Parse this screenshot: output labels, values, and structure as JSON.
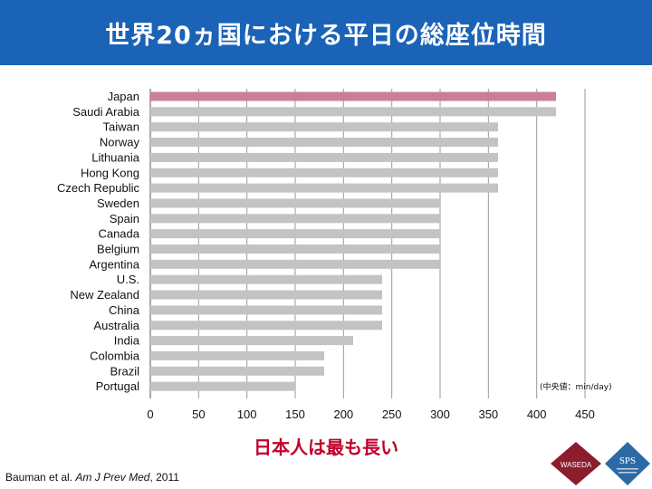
{
  "header": {
    "title": "世界20ヵ国における平日の総座位時間"
  },
  "chart_data": {
    "type": "bar",
    "orientation": "horizontal",
    "categories": [
      "Japan",
      "Saudi Arabia",
      "Taiwan",
      "Norway",
      "Lithuania",
      "Hong Kong",
      "Czech Republic",
      "Sweden",
      "Spain",
      "Canada",
      "Belgium",
      "Argentina",
      "U.S.",
      "New Zealand",
      "China",
      "Australia",
      "India",
      "Colombia",
      "Brazil",
      "Portugal"
    ],
    "values": [
      420,
      420,
      360,
      360,
      360,
      360,
      360,
      300,
      300,
      300,
      300,
      300,
      240,
      240,
      240,
      240,
      210,
      180,
      180,
      150
    ],
    "highlight_category": "Japan",
    "colors": {
      "highlight": "#c98097",
      "default": "#c3c3c3",
      "grid": "#9a9a9a"
    },
    "xlim": [
      0,
      450
    ],
    "xticks": [
      0,
      50,
      100,
      150,
      200,
      250,
      300,
      350,
      400,
      450
    ],
    "grid": "vertical",
    "unit_note": "(中央値：min/day)"
  },
  "conclusion": "日本人は最も長い",
  "citation": {
    "authors": "Bauman et al.",
    "journal": "Am J Prev Med",
    "year": ", 2011"
  },
  "logos": {
    "waseda": "WASEDA",
    "sps": "SPS"
  }
}
